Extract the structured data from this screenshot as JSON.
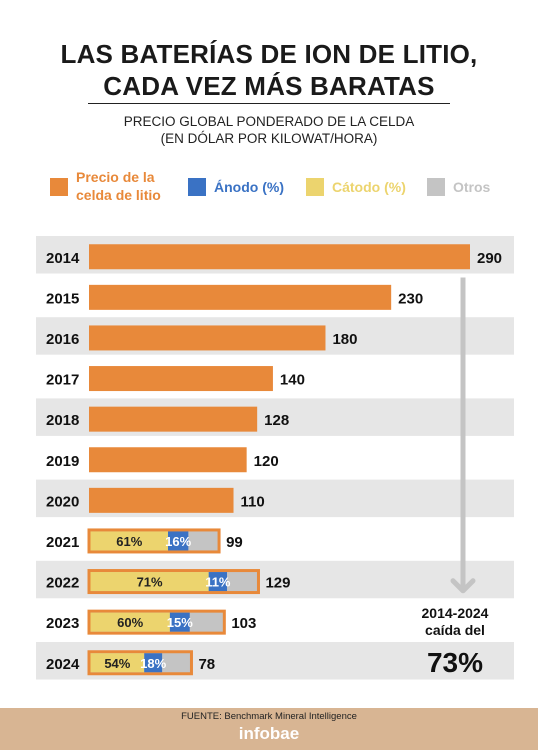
{
  "title_lines": [
    "LAS BATERÍAS DE ION DE LITIO,",
    "CADA VEZ MÁS BARATAS"
  ],
  "subtitle_lines": [
    "PRECIO GLOBAL PONDERADO DE LA CELDA",
    "(EN DÓLAR POR KILOWAT/HORA)"
  ],
  "legend": [
    {
      "label_lines": [
        "Precio de la",
        "celda de litio"
      ],
      "color": "#e8893a"
    },
    {
      "label_lines": [
        "Ánodo (%)"
      ],
      "color": "#3a72c4"
    },
    {
      "label_lines": [
        "Cátodo (%)"
      ],
      "color": "#ecd46e"
    },
    {
      "label_lines": [
        "Otros"
      ],
      "color": "#c4c4c4"
    }
  ],
  "colors": {
    "price": "#e8893a",
    "anode": "#3a72c4",
    "cathode": "#ecd46e",
    "others": "#c4c4c4",
    "row_band": "#e6e6e6",
    "arrow": "#c4c4c4"
  },
  "chart_data": {
    "type": "bar",
    "orientation": "horizontal",
    "categories": [
      "2014",
      "2015",
      "2016",
      "2017",
      "2018",
      "2019",
      "2020",
      "2021",
      "2022",
      "2023",
      "2024"
    ],
    "values": [
      290,
      230,
      180,
      140,
      128,
      120,
      110,
      99,
      129,
      103,
      78
    ],
    "value_labels": [
      "290",
      "230",
      "180",
      "140",
      "128",
      "120",
      "110",
      "99",
      "129",
      "103",
      "78"
    ],
    "breakdown": [
      {
        "year": "2021",
        "cathode": 61,
        "anode": 16,
        "cathode_label": "61%",
        "anode_label": "16%"
      },
      {
        "year": "2022",
        "cathode": 71,
        "anode": 11,
        "cathode_label": "71%",
        "anode_label": "11%"
      },
      {
        "year": "2023",
        "cathode": 60,
        "anode": 15,
        "cathode_label": "60%",
        "anode_label": "15%"
      },
      {
        "year": "2024",
        "cathode": 54,
        "anode": 18,
        "cathode_label": "54%",
        "anode_label": "18%"
      }
    ],
    "xlim": [
      0,
      290
    ],
    "annotation": {
      "lines": [
        "2014-2024",
        "caída del"
      ],
      "value": "73%"
    }
  },
  "footer": {
    "source": "FUENTE: Benchmark Mineral Intelligence",
    "brand": "infobae"
  }
}
